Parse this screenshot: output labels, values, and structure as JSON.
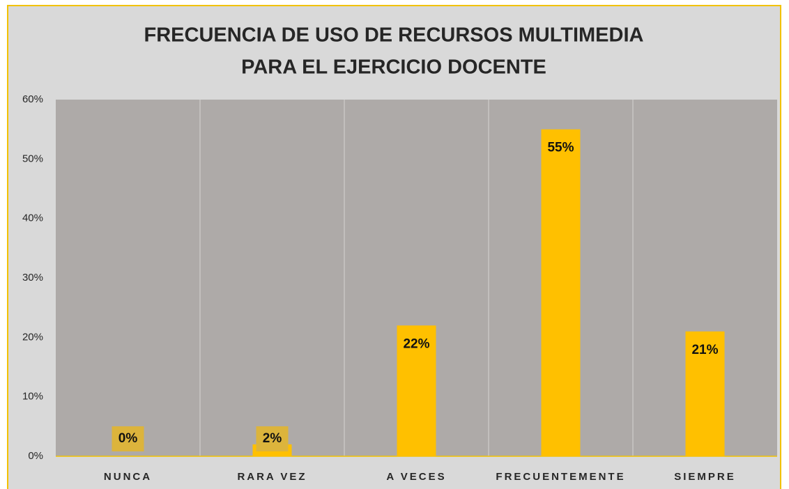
{
  "chart_data": {
    "type": "bar",
    "title": [
      "FRECUENCIA DE USO DE RECURSOS MULTIMEDIA",
      "PARA EL EJERCICIO DOCENTE"
    ],
    "categories": [
      "NUNCA",
      "RARA VEZ",
      "A VECES",
      "FRECUENTEMENTE",
      "SIEMPRE"
    ],
    "values": [
      0,
      2,
      22,
      55,
      21
    ],
    "value_labels": [
      "0%",
      "2%",
      "22%",
      "55%",
      "21%"
    ],
    "color": "#ffc000",
    "ylim": [
      0,
      60
    ],
    "yticks": [
      {
        "value": 0,
        "label": "0%"
      },
      {
        "value": 10,
        "label": "10%"
      },
      {
        "value": 20,
        "label": "20%"
      },
      {
        "value": 30,
        "label": "30%"
      },
      {
        "value": 40,
        "label": "40%"
      },
      {
        "value": 50,
        "label": "50%"
      },
      {
        "value": 60,
        "label": "60%"
      }
    ],
    "grid": false
  }
}
